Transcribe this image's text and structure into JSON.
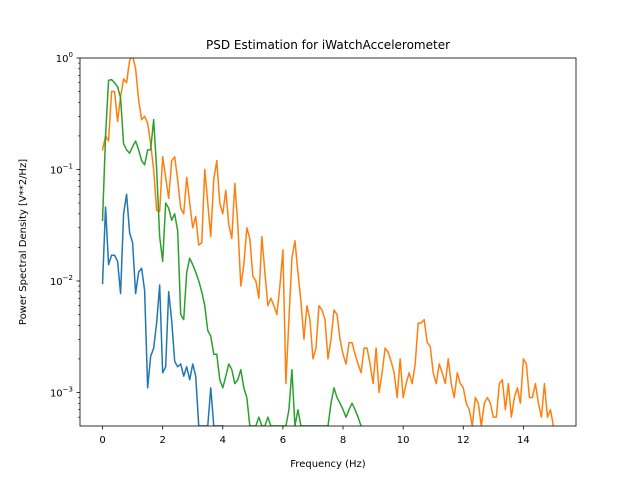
{
  "chart_data": {
    "type": "line",
    "title": "PSD Estimation for iWatchAccelerometer",
    "xlabel": "Frequency (Hz)",
    "ylabel": "Power Spectral Density [V**2/Hz]",
    "xlim": [
      -0.75,
      15.75
    ],
    "ylim": [
      0.0005,
      1
    ],
    "yscale": "log",
    "grid": false,
    "x_ticks": [
      0,
      2,
      4,
      6,
      8,
      10,
      12,
      14
    ],
    "y_ticks": [
      {
        "value": 0.001,
        "base": "10",
        "exp": "−3"
      },
      {
        "value": 0.01,
        "base": "10",
        "exp": "−2"
      },
      {
        "value": 0.1,
        "base": "10",
        "exp": "−1"
      },
      {
        "value": 1,
        "base": "10",
        "exp": "0"
      }
    ],
    "series": [
      {
        "color": "#1f77b4",
        "points": [
          [
            0.0,
            0.0095
          ],
          [
            0.1,
            0.046
          ],
          [
            0.2,
            0.014
          ],
          [
            0.3,
            0.017
          ],
          [
            0.4,
            0.017
          ],
          [
            0.5,
            0.015
          ],
          [
            0.6,
            0.0077
          ],
          [
            0.7,
            0.04
          ],
          [
            0.8,
            0.06
          ],
          [
            0.9,
            0.027
          ],
          [
            1.0,
            0.022
          ],
          [
            1.1,
            0.0077
          ],
          [
            1.2,
            0.012
          ],
          [
            1.3,
            0.013
          ],
          [
            1.4,
            0.0082
          ],
          [
            1.5,
            0.0011
          ],
          [
            1.6,
            0.0021
          ],
          [
            1.7,
            0.0025
          ],
          [
            1.8,
            0.0042
          ],
          [
            1.9,
            0.0092
          ],
          [
            2.0,
            0.0015
          ],
          [
            2.1,
            0.0017
          ],
          [
            2.2,
            0.008
          ],
          [
            2.3,
            0.0044
          ],
          [
            2.4,
            0.0019
          ],
          [
            2.5,
            0.0017
          ],
          [
            2.6,
            0.0018
          ],
          [
            2.7,
            0.0014
          ],
          [
            2.8,
            0.0017
          ],
          [
            2.9,
            0.0013
          ],
          [
            3.0,
            0.0018
          ],
          [
            3.1,
            0.0014
          ],
          [
            3.2,
            0.0005
          ],
          [
            3.3,
            0.0005
          ],
          [
            3.4,
            0.0005
          ],
          [
            3.5,
            0.0005
          ],
          [
            3.6,
            0.0011
          ],
          [
            3.7,
            0.0005
          ],
          [
            3.8,
            0.0005
          ],
          [
            3.9,
            0.0005
          ],
          [
            4.0,
            0.0005
          ]
        ]
      },
      {
        "color": "#ff7f0e",
        "points": [
          [
            0.0,
            0.15
          ],
          [
            0.1,
            0.2
          ],
          [
            0.2,
            0.18
          ],
          [
            0.3,
            0.5
          ],
          [
            0.4,
            0.5
          ],
          [
            0.5,
            0.27
          ],
          [
            0.6,
            0.45
          ],
          [
            0.7,
            0.65
          ],
          [
            0.8,
            0.6
          ],
          [
            0.9,
            0.95
          ],
          [
            1.0,
            1.05
          ],
          [
            1.1,
            0.8
          ],
          [
            1.2,
            0.42
          ],
          [
            1.3,
            0.28
          ],
          [
            1.4,
            0.3
          ],
          [
            1.5,
            0.26
          ],
          [
            1.6,
            0.17
          ],
          [
            1.7,
            0.1
          ],
          [
            1.8,
            0.043
          ],
          [
            1.9,
            0.042
          ],
          [
            2.0,
            0.13
          ],
          [
            2.1,
            0.085
          ],
          [
            2.2,
            0.055
          ],
          [
            2.3,
            0.12
          ],
          [
            2.4,
            0.13
          ],
          [
            2.5,
            0.08
          ],
          [
            2.6,
            0.045
          ],
          [
            2.7,
            0.04
          ],
          [
            2.8,
            0.085
          ],
          [
            2.9,
            0.05
          ],
          [
            3.0,
            0.03
          ],
          [
            3.1,
            0.038
          ],
          [
            3.2,
            0.021
          ],
          [
            3.3,
            0.022
          ],
          [
            3.4,
            0.1
          ],
          [
            3.5,
            0.05
          ],
          [
            3.6,
            0.025
          ],
          [
            3.7,
            0.082
          ],
          [
            3.8,
            0.12
          ],
          [
            3.9,
            0.05
          ],
          [
            4.0,
            0.04
          ],
          [
            4.1,
            0.065
          ],
          [
            4.2,
            0.032
          ],
          [
            4.3,
            0.024
          ],
          [
            4.4,
            0.075
          ],
          [
            4.5,
            0.032
          ],
          [
            4.6,
            0.009
          ],
          [
            4.7,
            0.014
          ],
          [
            4.8,
            0.03
          ],
          [
            4.9,
            0.024
          ],
          [
            5.0,
            0.011
          ],
          [
            5.1,
            0.01
          ],
          [
            5.2,
            0.007
          ],
          [
            5.3,
            0.025
          ],
          [
            5.4,
            0.012
          ],
          [
            5.5,
            0.006
          ],
          [
            5.6,
            0.007
          ],
          [
            5.7,
            0.006
          ],
          [
            5.8,
            0.005
          ],
          [
            5.9,
            0.009
          ],
          [
            6.0,
            0.019
          ],
          [
            6.1,
            0.0012
          ],
          [
            6.2,
            0.0045
          ],
          [
            6.3,
            0.016
          ],
          [
            6.4,
            0.023
          ],
          [
            6.5,
            0.012
          ],
          [
            6.6,
            0.0065
          ],
          [
            6.7,
            0.003
          ],
          [
            6.8,
            0.006
          ],
          [
            6.9,
            0.0045
          ],
          [
            7.0,
            0.002
          ],
          [
            7.1,
            0.0025
          ],
          [
            7.2,
            0.006
          ],
          [
            7.3,
            0.0055
          ],
          [
            7.4,
            0.0045
          ],
          [
            7.5,
            0.002
          ],
          [
            7.6,
            0.003
          ],
          [
            7.7,
            0.0055
          ],
          [
            7.8,
            0.005
          ],
          [
            7.9,
            0.003
          ],
          [
            8.0,
            0.0022
          ],
          [
            8.1,
            0.0018
          ],
          [
            8.2,
            0.0028
          ],
          [
            8.3,
            0.0028
          ],
          [
            8.4,
            0.0022
          ],
          [
            8.5,
            0.0018
          ],
          [
            8.6,
            0.0015
          ],
          [
            8.7,
            0.0025
          ],
          [
            8.8,
            0.0025
          ],
          [
            8.9,
            0.0018
          ],
          [
            9.0,
            0.0012
          ],
          [
            9.1,
            0.0025
          ],
          [
            9.2,
            0.001
          ],
          [
            9.3,
            0.0015
          ],
          [
            9.4,
            0.0025
          ],
          [
            9.5,
            0.0023
          ],
          [
            9.6,
            0.0019
          ],
          [
            9.7,
            0.0015
          ],
          [
            9.8,
            0.0009
          ],
          [
            9.9,
            0.002
          ],
          [
            10.0,
            0.0009
          ],
          [
            10.1,
            0.0012
          ],
          [
            10.2,
            0.0015
          ],
          [
            10.3,
            0.0012
          ],
          [
            10.4,
            0.0018
          ],
          [
            10.5,
            0.0042
          ],
          [
            10.6,
            0.0042
          ],
          [
            10.7,
            0.0045
          ],
          [
            10.8,
            0.0028
          ],
          [
            10.9,
            0.0026
          ],
          [
            11.0,
            0.0015
          ],
          [
            11.1,
            0.0012
          ],
          [
            11.2,
            0.0018
          ],
          [
            11.3,
            0.0015
          ],
          [
            11.4,
            0.0012
          ],
          [
            11.5,
            0.002
          ],
          [
            11.6,
            0.0012
          ],
          [
            11.7,
            0.0009
          ],
          [
            11.8,
            0.0015
          ],
          [
            11.9,
            0.0012
          ],
          [
            12.0,
            0.0011
          ],
          [
            12.1,
            0.0008
          ],
          [
            12.2,
            0.0007
          ],
          [
            12.3,
            0.0005
          ],
          [
            12.4,
            0.0009
          ],
          [
            12.5,
            0.0008
          ],
          [
            12.6,
            0.0005
          ],
          [
            12.7,
            0.0008
          ],
          [
            12.8,
            0.0009
          ],
          [
            12.9,
            0.0008
          ],
          [
            13.0,
            0.0006
          ],
          [
            13.1,
            0.0006
          ],
          [
            13.2,
            0.0012
          ],
          [
            13.3,
            0.0013
          ],
          [
            13.4,
            0.0007
          ],
          [
            13.5,
            0.0012
          ],
          [
            13.6,
            0.0006
          ],
          [
            13.7,
            0.0009
          ],
          [
            13.8,
            0.0011
          ],
          [
            13.9,
            0.0008
          ],
          [
            14.0,
            0.002
          ],
          [
            14.1,
            0.0018
          ],
          [
            14.2,
            0.0009
          ],
          [
            14.3,
            0.0009
          ],
          [
            14.4,
            0.0012
          ],
          [
            14.5,
            0.0008
          ],
          [
            14.6,
            0.0006
          ],
          [
            14.7,
            0.0012
          ],
          [
            14.8,
            0.0006
          ],
          [
            14.9,
            0.0007
          ],
          [
            15.0,
            0.0005
          ]
        ]
      },
      {
        "color": "#2ca02c",
        "points": [
          [
            0.0,
            0.035
          ],
          [
            0.1,
            0.2
          ],
          [
            0.2,
            0.63
          ],
          [
            0.3,
            0.64
          ],
          [
            0.4,
            0.6
          ],
          [
            0.5,
            0.55
          ],
          [
            0.6,
            0.44
          ],
          [
            0.7,
            0.17
          ],
          [
            0.8,
            0.15
          ],
          [
            0.9,
            0.14
          ],
          [
            1.0,
            0.16
          ],
          [
            1.1,
            0.18
          ],
          [
            1.2,
            0.15
          ],
          [
            1.3,
            0.12
          ],
          [
            1.4,
            0.11
          ],
          [
            1.5,
            0.15
          ],
          [
            1.6,
            0.15
          ],
          [
            1.7,
            0.28
          ],
          [
            1.8,
            0.1
          ],
          [
            1.9,
            0.025
          ],
          [
            2.0,
            0.015
          ],
          [
            2.1,
            0.05
          ],
          [
            2.2,
            0.045
          ],
          [
            2.3,
            0.035
          ],
          [
            2.4,
            0.04
          ],
          [
            2.5,
            0.028
          ],
          [
            2.6,
            0.005
          ],
          [
            2.7,
            0.0045
          ],
          [
            2.8,
            0.012
          ],
          [
            2.9,
            0.016
          ],
          [
            3.0,
            0.014
          ],
          [
            3.1,
            0.012
          ],
          [
            3.2,
            0.01
          ],
          [
            3.3,
            0.008
          ],
          [
            3.4,
            0.006
          ],
          [
            3.5,
            0.0036
          ],
          [
            3.6,
            0.0032
          ],
          [
            3.7,
            0.0022
          ],
          [
            3.8,
            0.0022
          ],
          [
            3.9,
            0.0013
          ],
          [
            4.0,
            0.0011
          ],
          [
            4.1,
            0.0014
          ],
          [
            4.2,
            0.0018
          ],
          [
            4.3,
            0.0016
          ],
          [
            4.4,
            0.0012
          ],
          [
            4.5,
            0.0013
          ],
          [
            4.6,
            0.0016
          ],
          [
            4.7,
            0.0011
          ],
          [
            4.8,
            0.0009
          ],
          [
            4.9,
            0.0005
          ],
          [
            5.0,
            0.0005
          ],
          [
            5.1,
            0.0005
          ],
          [
            5.2,
            0.0006
          ],
          [
            5.3,
            0.0005
          ],
          [
            5.4,
            0.0005
          ],
          [
            5.5,
            0.0006
          ],
          [
            5.6,
            0.0005
          ],
          [
            5.7,
            0.0005
          ],
          [
            5.8,
            0.0005
          ],
          [
            5.9,
            0.0005
          ],
          [
            6.0,
            0.0005
          ],
          [
            6.1,
            0.0005
          ],
          [
            6.2,
            0.0007
          ],
          [
            6.3,
            0.0016
          ],
          [
            6.4,
            0.0005
          ],
          [
            6.5,
            0.0007
          ],
          [
            6.6,
            0.0005
          ],
          [
            6.7,
            0.0005
          ],
          [
            6.8,
            0.0005
          ],
          [
            6.9,
            0.0005
          ],
          [
            7.0,
            0.0005
          ],
          [
            7.1,
            0.0005
          ],
          [
            7.2,
            0.0005
          ],
          [
            7.3,
            0.0005
          ],
          [
            7.4,
            0.0005
          ],
          [
            7.5,
            0.0005
          ],
          [
            7.6,
            0.0008
          ],
          [
            7.7,
            0.0011
          ],
          [
            7.8,
            0.0009
          ],
          [
            7.9,
            0.0008
          ],
          [
            8.0,
            0.0007
          ],
          [
            8.1,
            0.0006
          ],
          [
            8.2,
            0.0007
          ],
          [
            8.3,
            0.0008
          ],
          [
            8.4,
            0.0007
          ],
          [
            8.5,
            0.0006
          ],
          [
            8.6,
            0.0005
          ]
        ]
      }
    ]
  }
}
